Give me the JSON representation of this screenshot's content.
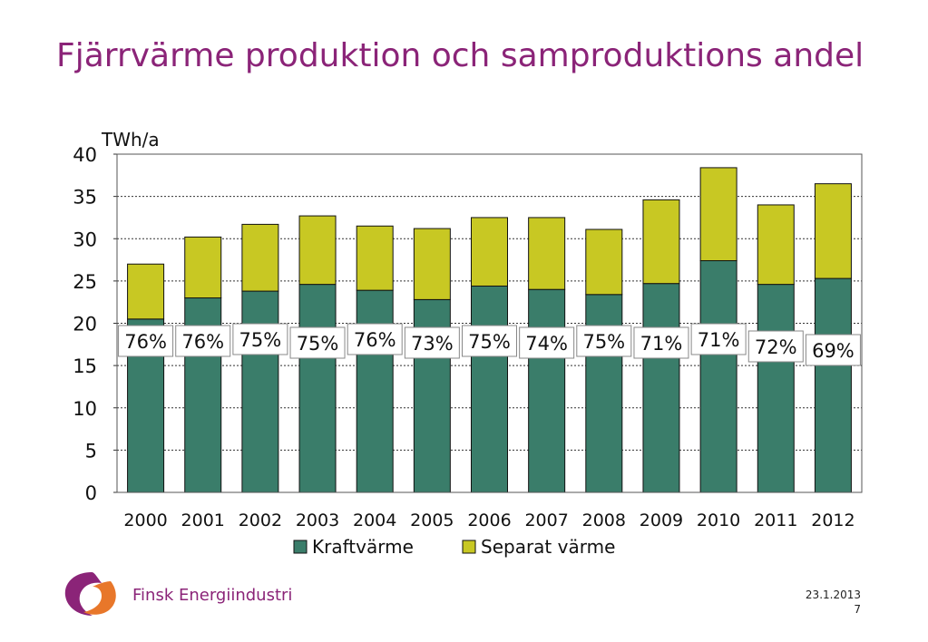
{
  "slide": {
    "title": "Fjärrvärme produktion och samproduktions andel",
    "date": "23.1.2013",
    "page_number": "7",
    "logo_text": "Finsk Energiindustri"
  },
  "colors": {
    "title": "#8b2478",
    "kraftvarme": "#3a7d6a",
    "separat": "#c8c823",
    "logo_purple": "#8b2478",
    "logo_orange": "#e8772a"
  },
  "chart_data": {
    "type": "bar",
    "stacked": true,
    "ylabel": "TWh/a",
    "ylim": [
      0,
      40
    ],
    "yticks": [
      "0",
      "5",
      "10",
      "15",
      "20",
      "25",
      "30",
      "35",
      "40"
    ],
    "grid": true,
    "legend_position": "bottom",
    "categories": [
      "2000",
      "2001",
      "2002",
      "2003",
      "2004",
      "2005",
      "2006",
      "2007",
      "2008",
      "2009",
      "2010",
      "2011",
      "2012"
    ],
    "series": [
      {
        "name": "Kraftvärme",
        "values": [
          20.5,
          23.0,
          23.8,
          24.6,
          23.9,
          22.8,
          24.4,
          24.0,
          23.4,
          24.7,
          27.4,
          24.6,
          25.3
        ]
      },
      {
        "name": "Separat värme",
        "values": [
          6.5,
          7.2,
          7.9,
          8.1,
          7.6,
          8.4,
          8.1,
          8.5,
          7.7,
          9.9,
          11.0,
          9.4,
          11.2
        ]
      }
    ],
    "annotations": [
      "76%",
      "76%",
      "75%",
      "75%",
      "76%",
      "73%",
      "75%",
      "74%",
      "75%",
      "71%",
      "71%",
      "72%",
      "69%"
    ]
  }
}
